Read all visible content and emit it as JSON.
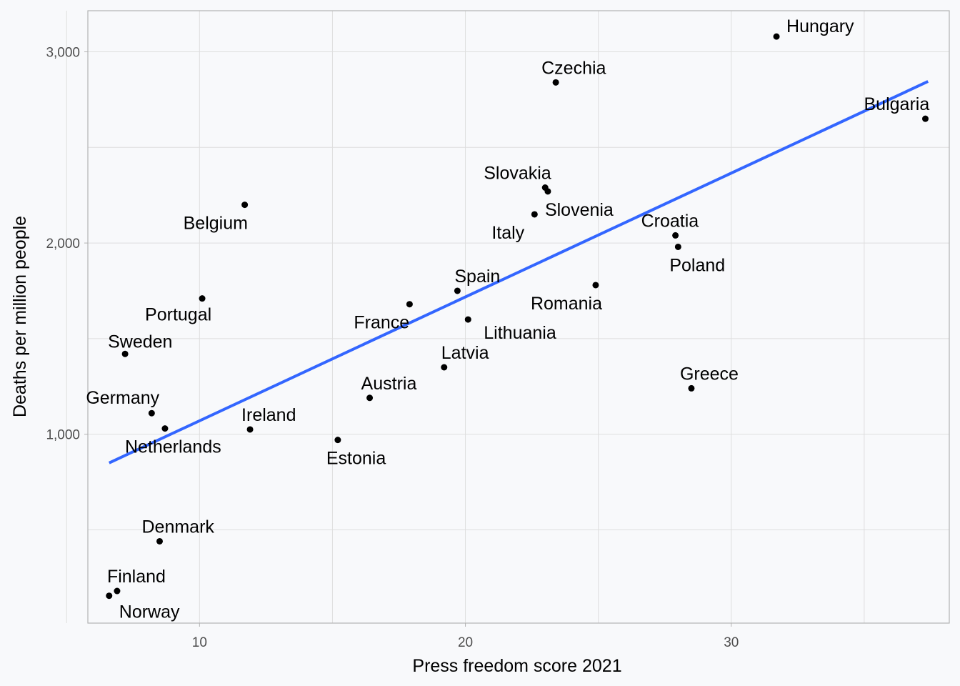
{
  "chart_data": {
    "type": "scatter",
    "xlabel": "Press freedom score 2021",
    "ylabel": "Deaths per million people",
    "xlim": [
      5.8,
      38.2
    ],
    "ylim": [
      12,
      3215
    ],
    "x_ticks": [
      10,
      20,
      30
    ],
    "x_tick_labels": [
      "10",
      "20",
      "30"
    ],
    "y_ticks": [
      1000,
      2000,
      3000
    ],
    "y_tick_labels": [
      "1,000",
      "2,000",
      "3,000"
    ],
    "grid": true,
    "colors": {
      "points": "#000000",
      "trend": "#3366ff",
      "grid": "#dedede",
      "background": "#f8f9fb"
    },
    "trend_line": {
      "x": [
        6.6,
        37.4
      ],
      "y": [
        850,
        2845
      ]
    },
    "points": [
      {
        "label": "Hungary",
        "x": 31.7,
        "y": 3080
      },
      {
        "label": "Czechia",
        "x": 23.4,
        "y": 2840
      },
      {
        "label": "Bulgaria",
        "x": 37.3,
        "y": 2650
      },
      {
        "label": "Slovakia",
        "x": 23.0,
        "y": 2290
      },
      {
        "label": "Slovenia",
        "x": 23.1,
        "y": 2270
      },
      {
        "label": "Belgium",
        "x": 11.7,
        "y": 2200
      },
      {
        "label": "Italy",
        "x": 22.6,
        "y": 2150
      },
      {
        "label": "Croatia",
        "x": 27.9,
        "y": 2040
      },
      {
        "label": "Poland",
        "x": 28.0,
        "y": 1980
      },
      {
        "label": "Romania",
        "x": 24.9,
        "y": 1780
      },
      {
        "label": "Spain",
        "x": 19.7,
        "y": 1750
      },
      {
        "label": "Portugal",
        "x": 10.1,
        "y": 1710
      },
      {
        "label": "France",
        "x": 17.9,
        "y": 1680
      },
      {
        "label": "Lithuania",
        "x": 20.1,
        "y": 1600
      },
      {
        "label": "Sweden",
        "x": 7.2,
        "y": 1420
      },
      {
        "label": "Latvia",
        "x": 19.2,
        "y": 1350
      },
      {
        "label": "Greece",
        "x": 28.5,
        "y": 1240
      },
      {
        "label": "Austria",
        "x": 16.4,
        "y": 1190
      },
      {
        "label": "Germany",
        "x": 8.2,
        "y": 1110
      },
      {
        "label": "Netherlands",
        "x": 8.7,
        "y": 1030
      },
      {
        "label": "Ireland",
        "x": 11.9,
        "y": 1025
      },
      {
        "label": "Estonia",
        "x": 15.2,
        "y": 970
      },
      {
        "label": "Denmark",
        "x": 8.5,
        "y": 440
      },
      {
        "label": "Finland",
        "x": 6.9,
        "y": 180
      },
      {
        "label": "Norway",
        "x": 6.6,
        "y": 155
      }
    ]
  }
}
